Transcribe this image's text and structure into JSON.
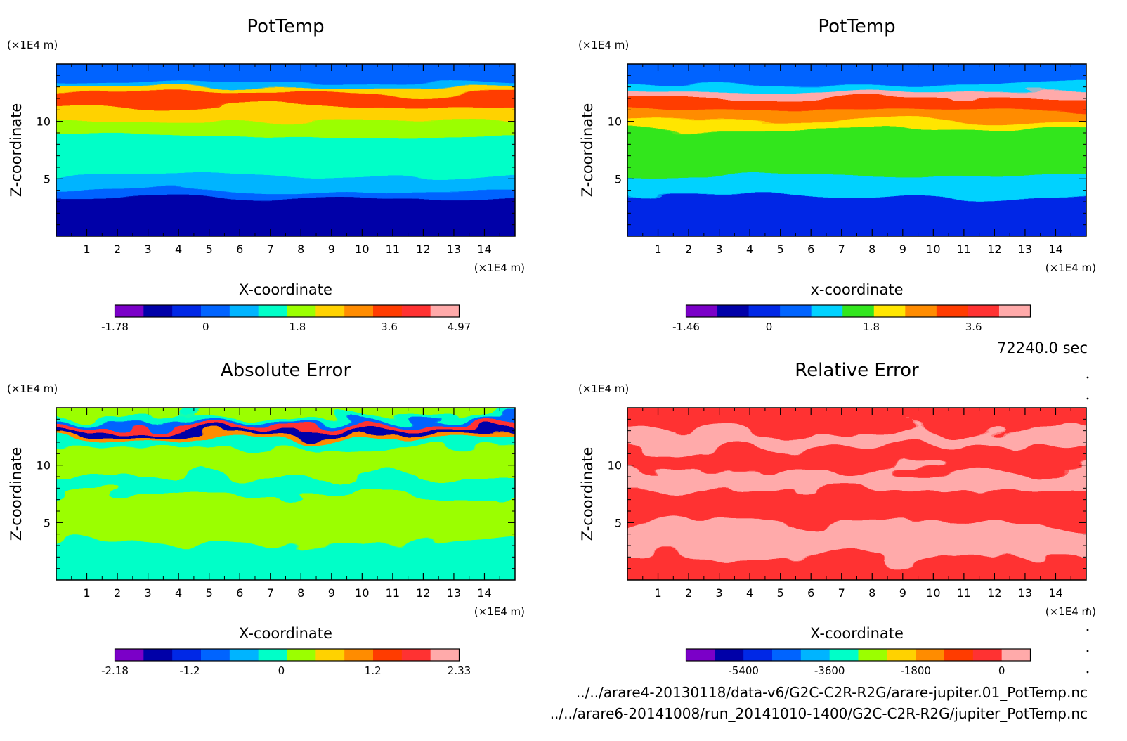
{
  "time_label": "72240.0 sec",
  "files": [
    "../../arare4-20130118/data-v6/G2C-C2R-R2G/arare-jupiter.01_PotTemp.nc",
    "../../arare6-20141008/run_20141010-1400/G2C-C2R-R2G/jupiter_PotTemp.nc"
  ],
  "chart_data": [
    {
      "type": "heatmap",
      "title": "PotTemp",
      "xlabel": "X-coordinate",
      "ylabel": "Z-coordinate",
      "x_unit": "(×1E4 m)",
      "y_unit": "(×1E4 m)",
      "xlim": [
        0,
        15
      ],
      "ylim": [
        0,
        15
      ],
      "xticks": [
        1,
        2,
        3,
        4,
        5,
        6,
        7,
        8,
        9,
        10,
        11,
        12,
        13,
        14
      ],
      "yticks": [
        5,
        10
      ],
      "colorbar": {
        "min": -1.78,
        "max": 4.97,
        "ticks": [
          "-1.78",
          "0",
          "1.8",
          "3.6",
          "4.97"
        ],
        "tick_values": [
          -1.78,
          0,
          1.8,
          3.6,
          4.97
        ],
        "colors": [
          "#7b00c8",
          "#0000a8",
          "#0028e6",
          "#0064ff",
          "#00b4ff",
          "#00ffc8",
          "#9bff00",
          "#ffd200",
          "#ff8c00",
          "#ff3c00",
          "#ff3232",
          "#ffaaaa"
        ]
      },
      "bands_top_to_bottom": [
        {
          "z": [
            14.8,
            13.3
          ],
          "color_index": 3
        },
        {
          "z": [
            13.3,
            12.9
          ],
          "color_index": 4
        },
        {
          "z": [
            12.9,
            12.5
          ],
          "color_index": 7
        },
        {
          "z": [
            12.5,
            11.3
          ],
          "color_index": 9
        },
        {
          "z": [
            11.3,
            10.0
          ],
          "color_index": 7
        },
        {
          "z": [
            10.0,
            8.7
          ],
          "color_index": 6
        },
        {
          "z": [
            8.7,
            5.3
          ],
          "color_index": 5
        },
        {
          "z": [
            5.3,
            4.0
          ],
          "color_index": 4
        },
        {
          "z": [
            4.0,
            3.3
          ],
          "color_index": 3
        },
        {
          "z": [
            3.3,
            0.0
          ],
          "color_index": 1
        }
      ]
    },
    {
      "type": "heatmap",
      "title": "PotTemp",
      "xlabel": "x-coordinate",
      "ylabel": "Z-coordinate",
      "x_unit": "(×1E4 m)",
      "y_unit": "(×1E4 m)",
      "xlim": [
        0,
        15
      ],
      "ylim": [
        0,
        15
      ],
      "xticks": [
        1,
        2,
        3,
        4,
        5,
        6,
        7,
        8,
        9,
        10,
        11,
        12,
        13,
        14
      ],
      "yticks": [
        5,
        10
      ],
      "colorbar": {
        "min": -1.46,
        "max": 4.6,
        "ticks": [
          "-1.46",
          "0",
          "1.8",
          "3.6"
        ],
        "tick_values": [
          -1.46,
          0,
          1.8,
          3.6
        ],
        "colors": [
          "#7b00c8",
          "#0000a8",
          "#0028e6",
          "#0064ff",
          "#00d2ff",
          "#32e61e",
          "#ffe600",
          "#ff8c00",
          "#ff3c00",
          "#ff3232",
          "#ffaaaa"
        ]
      },
      "bands_top_to_bottom": [
        {
          "z": [
            14.8,
            13.3
          ],
          "color_index": 3
        },
        {
          "z": [
            13.3,
            12.6
          ],
          "color_index": 4
        },
        {
          "z": [
            12.6,
            12.0
          ],
          "color_index": 10
        },
        {
          "z": [
            12.0,
            11.0
          ],
          "color_index": 8
        },
        {
          "z": [
            11.0,
            10.0
          ],
          "color_index": 7
        },
        {
          "z": [
            10.0,
            9.3
          ],
          "color_index": 6
        },
        {
          "z": [
            9.3,
            5.3
          ],
          "color_index": 5
        },
        {
          "z": [
            5.3,
            3.5
          ],
          "color_index": 4
        },
        {
          "z": [
            3.5,
            0.0
          ],
          "color_index": 2
        }
      ]
    },
    {
      "type": "heatmap",
      "title": "Absolute Error",
      "xlabel": "X-coordinate",
      "ylabel": "Z-coordinate",
      "x_unit": "(×1E4 m)",
      "y_unit": "(×1E4 m)",
      "xlim": [
        0,
        15
      ],
      "ylim": [
        0,
        15
      ],
      "xticks": [
        1,
        2,
        3,
        4,
        5,
        6,
        7,
        8,
        9,
        10,
        11,
        12,
        13,
        14
      ],
      "yticks": [
        5,
        10
      ],
      "colorbar": {
        "min": -2.18,
        "max": 2.33,
        "ticks": [
          "-2.18",
          "-1.2",
          "0",
          "1.2",
          "2.33"
        ],
        "tick_values": [
          -2.18,
          -1.2,
          0,
          1.2,
          2.33
        ],
        "colors": [
          "#7b00c8",
          "#0000a8",
          "#0028e6",
          "#0064ff",
          "#00b4ff",
          "#00ffc8",
          "#9bff00",
          "#ffd200",
          "#ff8c00",
          "#ff3c00",
          "#ff3232",
          "#ffaaaa"
        ]
      },
      "bands_top_to_bottom": [
        {
          "z": [
            14.8,
            14.2
          ],
          "color_index": 6
        },
        {
          "z": [
            14.2,
            13.8
          ],
          "color_index": 5
        },
        {
          "z": [
            13.8,
            13.5
          ],
          "color_index": 3
        },
        {
          "z": [
            13.5,
            13.1
          ],
          "color_index": 10
        },
        {
          "z": [
            13.1,
            12.7
          ],
          "color_index": 1
        },
        {
          "z": [
            12.7,
            12.3
          ],
          "color_index": 8
        },
        {
          "z": [
            12.3,
            11.5
          ],
          "color_index": 5
        },
        {
          "z": [
            11.5,
            9.0
          ],
          "color_index": 6
        },
        {
          "z": [
            9.0,
            7.5
          ],
          "color_index": 5
        },
        {
          "z": [
            7.5,
            3.2
          ],
          "color_index": 6
        },
        {
          "z": [
            3.2,
            0.0
          ],
          "color_index": 5
        }
      ]
    },
    {
      "type": "heatmap",
      "title": "Relative Error",
      "xlabel": "X-coordinate",
      "ylabel": "Z-coordinate",
      "x_unit": "(×1E4 m)",
      "y_unit": "(×1E4 m)",
      "xlim": [
        0,
        15
      ],
      "ylim": [
        0,
        15
      ],
      "xticks": [
        1,
        2,
        3,
        4,
        5,
        6,
        7,
        8,
        9,
        10,
        11,
        12,
        13,
        14
      ],
      "yticks": [
        5,
        10
      ],
      "colorbar": {
        "min": -6600,
        "max": 600,
        "ticks": [
          "-5400",
          "-3600",
          "-1800",
          "0"
        ],
        "tick_values": [
          -5400,
          -3600,
          -1800,
          0
        ],
        "colors": [
          "#7b00c8",
          "#0000a8",
          "#0028e6",
          "#0064ff",
          "#00b4ff",
          "#00ffc8",
          "#9bff00",
          "#ffd200",
          "#ff8c00",
          "#ff3c00",
          "#ff3232",
          "#ffaaaa"
        ]
      },
      "bands_top_to_bottom": [
        {
          "z": [
            14.8,
            13.0
          ],
          "color_index": 10
        },
        {
          "z": [
            13.0,
            11.5
          ],
          "color_index": 11
        },
        {
          "z": [
            11.5,
            9.5
          ],
          "color_index": 10
        },
        {
          "z": [
            9.5,
            7.8
          ],
          "color_index": 11
        },
        {
          "z": [
            7.8,
            5.0
          ],
          "color_index": 10
        },
        {
          "z": [
            5.0,
            2.0
          ],
          "color_index": 11
        },
        {
          "z": [
            2.0,
            0.0
          ],
          "color_index": 10
        }
      ]
    }
  ]
}
